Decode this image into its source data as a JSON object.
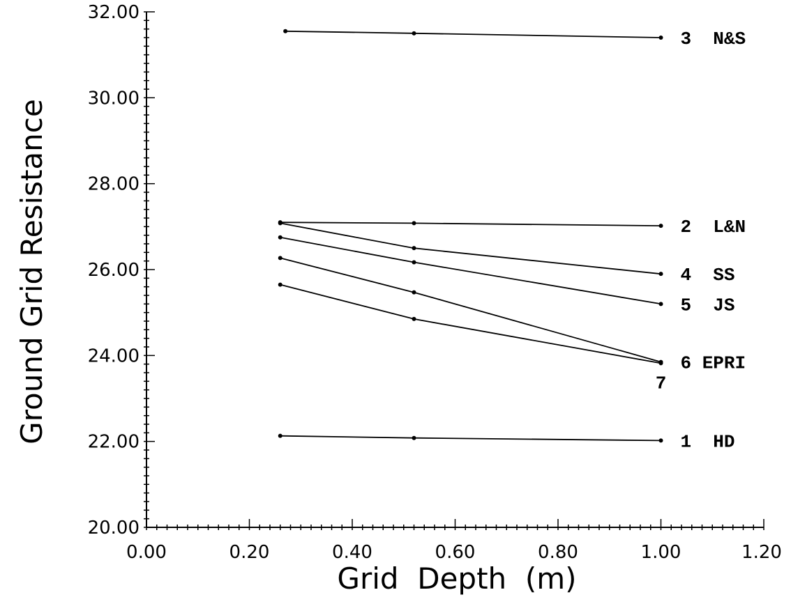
{
  "chart_data": {
    "type": "line",
    "xlabel": "Grid  Depth  (m)",
    "ylabel": "Ground Grid Resistance",
    "xlim": [
      0.0,
      1.2
    ],
    "ylim": [
      20.0,
      32.0
    ],
    "x_ticks": [
      "0.00",
      "0.20",
      "0.40",
      "0.60",
      "0.80",
      "1.00",
      "1.20"
    ],
    "y_ticks": [
      "20.00",
      "22.00",
      "24.00",
      "26.00",
      "28.00",
      "30.00",
      "32.00"
    ],
    "grid": false,
    "series": [
      {
        "name": "3  N&S",
        "x": [
          0.27,
          0.52,
          1.0
        ],
        "values": [
          31.55,
          31.5,
          31.4
        ]
      },
      {
        "name": "2  L&N",
        "x": [
          0.26,
          0.52,
          1.0
        ],
        "values": [
          27.1,
          27.08,
          27.02
        ]
      },
      {
        "name": "4  SS",
        "x": [
          0.26,
          0.52,
          1.0
        ],
        "values": [
          27.08,
          26.5,
          25.9
        ]
      },
      {
        "name": "5  JS",
        "x": [
          0.26,
          0.52,
          1.0
        ],
        "values": [
          26.75,
          26.17,
          25.2
        ]
      },
      {
        "name": "6 EPRI",
        "x": [
          0.26,
          0.52,
          1.0
        ],
        "values": [
          26.27,
          25.47,
          23.85
        ]
      },
      {
        "name": "7",
        "x": [
          0.26,
          0.52,
          1.0
        ],
        "values": [
          25.65,
          24.85,
          23.82
        ]
      },
      {
        "name": "1  HD",
        "x": [
          0.26,
          0.52,
          1.0
        ],
        "values": [
          22.13,
          22.08,
          22.02
        ]
      }
    ]
  }
}
